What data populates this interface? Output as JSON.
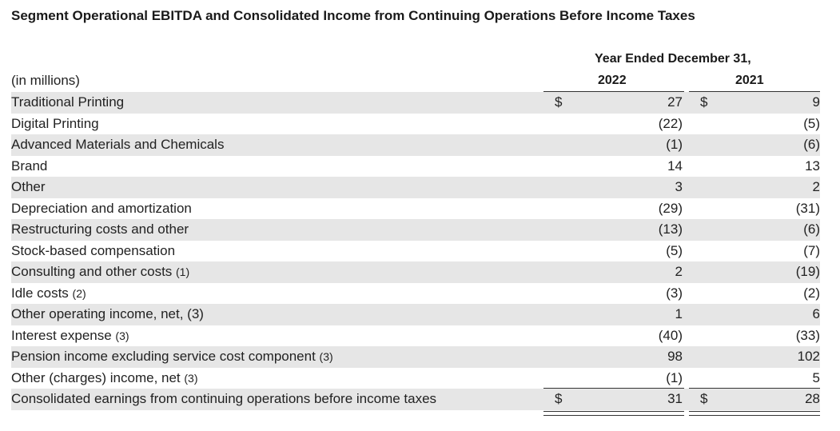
{
  "title": "Segment Operational EBITDA and Consolidated Income from Continuing Operations Before Income Taxes",
  "header": {
    "period": "Year Ended December 31,",
    "year1": "2022",
    "year2": "2021",
    "units": "(in millions)"
  },
  "rows": [
    {
      "label": "Traditional Printing",
      "note": "",
      "dollar": "$",
      "v2022": "27",
      "v2021": "9"
    },
    {
      "label": "Digital Printing",
      "note": "",
      "dollar": "",
      "v2022": "(22)",
      "v2021": "(5)"
    },
    {
      "label": "Advanced Materials and Chemicals",
      "note": "",
      "dollar": "",
      "v2022": "(1)",
      "v2021": "(6)"
    },
    {
      "label": "Brand",
      "note": "",
      "dollar": "",
      "v2022": "14",
      "v2021": "13"
    },
    {
      "label": "Other",
      "note": "",
      "dollar": "",
      "v2022": "3",
      "v2021": "2"
    },
    {
      "label": "Depreciation and amortization",
      "note": "",
      "dollar": "",
      "v2022": "(29)",
      "v2021": "(31)"
    },
    {
      "label": "Restructuring costs and other",
      "note": "",
      "dollar": "",
      "v2022": "(13)",
      "v2021": "(6)"
    },
    {
      "label": "Stock-based compensation",
      "note": "",
      "dollar": "",
      "v2022": "(5)",
      "v2021": "(7)"
    },
    {
      "label": "Consulting and other costs ",
      "note": "(1)",
      "dollar": "",
      "v2022": "2",
      "v2021": "(19)"
    },
    {
      "label": "Idle costs ",
      "note": "(2)",
      "dollar": "",
      "v2022": "(3)",
      "v2021": "(2)"
    },
    {
      "label": "Other operating income, net, (3)",
      "note": "",
      "dollar": "",
      "v2022": "1",
      "v2021": "6"
    },
    {
      "label": "Interest expense ",
      "note": "(3)",
      "dollar": "",
      "v2022": "(40)",
      "v2021": "(33)"
    },
    {
      "label": "Pension income excluding service cost component ",
      "note": "(3)",
      "dollar": "",
      "v2022": "98",
      "v2021": "102"
    },
    {
      "label": "Other (charges) income, net ",
      "note": "(3)",
      "dollar": "",
      "v2022": "(1)",
      "v2021": "5"
    },
    {
      "label": "Consolidated earnings from continuing operations before income taxes",
      "note": "",
      "dollar": "$",
      "v2022": "31",
      "v2021": "28"
    }
  ]
}
